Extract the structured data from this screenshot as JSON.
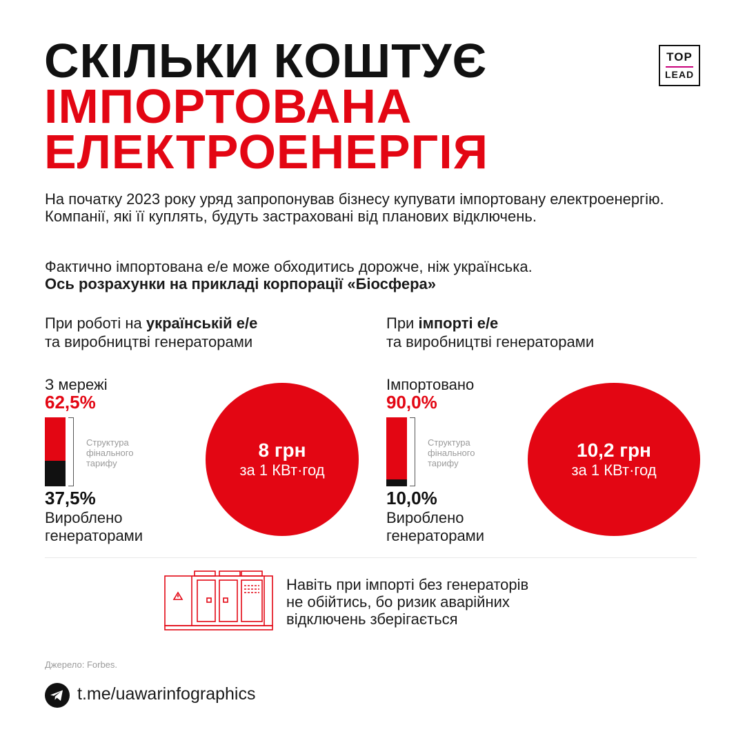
{
  "title": {
    "line1": "СКІЛЬКИ КОШТУЄ",
    "line2": "ІМПОРТОВАНА",
    "line3": "ЕЛЕКТРОЕНЕРГІЯ"
  },
  "logo": {
    "line1": "TOP",
    "line2": "LEAD"
  },
  "intro": "На початку 2023 року уряд запропонував бізнесу купувати імпортовану електроенергію. Компанії, які її куплять, будуть застраховані від планових відключень.",
  "fact": {
    "text": "Фактично імпортована е/е може обходитись  дорожче, ніж українська.",
    "bold": "Ось розрахунки на прикладі корпорації «Біосфера»"
  },
  "chart_data": {
    "type": "bar",
    "stacked": true,
    "struct_label": "Структура фінального тарифу",
    "panels": [
      {
        "head_pre": "При роботі на ",
        "head_bold": "українській е/е",
        "head_post": "та виробництві генераторами",
        "top_label": "З мережі",
        "top_value": 62.5,
        "top_text": "62,5%",
        "bottom_value": 37.5,
        "bottom_text": "37,5%",
        "bottom_label_1": "Вироблено",
        "bottom_label_2": "генераторами",
        "price": "8 грн",
        "unit": "за 1 КВт·год"
      },
      {
        "head_pre": "При ",
        "head_bold": "імпорті е/е",
        "head_post": "та виробництві генераторами",
        "top_label": "Імпортовано",
        "top_value": 90.0,
        "top_text": "90,0%",
        "bottom_value": 10.0,
        "bottom_text": "10,0%",
        "bottom_label_1": "Вироблено",
        "bottom_label_2": "генераторами",
        "price": "10,2 грн",
        "unit": "за 1 КВт·год"
      }
    ],
    "colors": {
      "top": "#e30613",
      "bottom": "#111111"
    }
  },
  "note": {
    "line1": "Навіть при імпорті без генераторів",
    "line2": "не обійтись, бо ризик аварійних",
    "line3": "відключень зберігається"
  },
  "icons": {
    "generator": "generator-icon",
    "telegram": "telegram-icon"
  },
  "source": "Джерело: Forbes.",
  "link": "t.me/uawarinfographics"
}
